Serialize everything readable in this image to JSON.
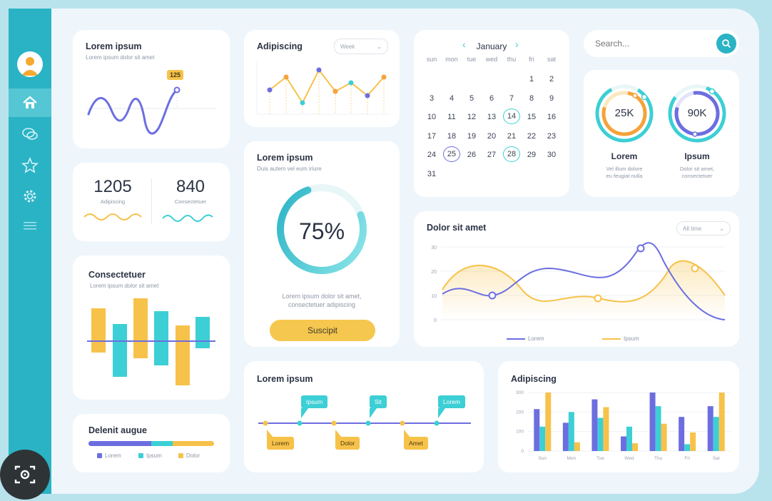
{
  "colors": {
    "teal": "#2ab3c5",
    "turquoise": "#3ccfd5",
    "yellow": "#f6c24a",
    "purple": "#6c6ee0",
    "frame_bg": "#eef6fb",
    "outer_bg": "#b9e3ec"
  },
  "sidebar": {
    "items": [
      {
        "name": "home",
        "icon": "home-icon"
      },
      {
        "name": "messages",
        "icon": "chat-icon"
      },
      {
        "name": "favorites",
        "icon": "star-icon"
      },
      {
        "name": "settings",
        "icon": "gear-icon"
      },
      {
        "name": "menu",
        "icon": "menu-icon"
      }
    ]
  },
  "card_wave": {
    "title": "Lorem ipsum",
    "subtitle": "Lorem ipsum dolor sit amet",
    "badge": "125"
  },
  "stats": [
    {
      "value": "1205",
      "label": "Adipiscing"
    },
    {
      "value": "840",
      "label": "Consectetuer"
    }
  ],
  "card_bars_updown": {
    "title": "Consectetuer",
    "subtitle": "Lorem ipsum dolor sit amet"
  },
  "card_progress_legend": {
    "title": "Delenit augue",
    "legend": [
      "Lorem",
      "Ipsum",
      "Dolor"
    ]
  },
  "card_line_small": {
    "title": "Adipiscing",
    "dropdown": "Week"
  },
  "card_donut": {
    "title": "Lorem ipsum",
    "subtitle": "Duis autem vel eum iriure",
    "percent": "75%",
    "percent_value": 75,
    "text_line1": "Lorem ipsum dolor sit amet,",
    "text_line2": "consectetuer adipiscing",
    "button": "Suscipit"
  },
  "timeline": {
    "title": "Lorem ipsum",
    "top_tags": [
      "Ipsum",
      "Sit",
      "Lorem"
    ],
    "bottom_tags": [
      "Lorem",
      "Dolor",
      "Amet"
    ]
  },
  "calendar": {
    "month": "January",
    "weekdays": [
      "sun",
      "mon",
      "tue",
      "wed",
      "thu",
      "fri",
      "sat"
    ],
    "weeks": [
      [
        "",
        "",
        "",
        "",
        "",
        "1",
        "2"
      ],
      [
        "3",
        "4",
        "5",
        "6",
        "7",
        "8",
        "9"
      ],
      [
        "10",
        "11",
        "12",
        "13",
        "14",
        "15",
        "16"
      ],
      [
        "17",
        "18",
        "19",
        "20",
        "21",
        "22",
        "23"
      ],
      [
        "24",
        "25",
        "26",
        "27",
        "28",
        "29",
        "30"
      ],
      [
        "31",
        "",
        "",
        "",
        "",
        "",
        ""
      ]
    ],
    "highlight_teal": [
      "14",
      "28"
    ],
    "highlight_purple": [
      "25"
    ]
  },
  "search": {
    "placeholder": "Search..."
  },
  "rings": [
    {
      "value": "25K",
      "label": "Lorem",
      "desc1": "Vel illum dolore",
      "desc2": "eu feugiat nulla"
    },
    {
      "value": "90K",
      "label": "Ipsum",
      "desc1": "Dolor sit amet,",
      "desc2": "consectetuer"
    }
  ],
  "chart_data": [
    {
      "type": "line",
      "title": "Dolor sit amet",
      "dropdown": "All time",
      "y_ticks": [
        "30",
        "20",
        "10",
        "0"
      ],
      "legend": [
        "Lorem",
        "Ipsum"
      ]
    },
    {
      "type": "bar",
      "title": "Adipiscing",
      "categories": [
        "Sun",
        "Mon",
        "Tue",
        "Wed",
        "Thu",
        "Fri",
        "Sat"
      ],
      "y_ticks": [
        "300",
        "200",
        "100",
        "0"
      ],
      "series": [
        {
          "color": "#6c6ee0",
          "values": [
            215,
            145,
            265,
            75,
            300,
            175,
            230
          ]
        },
        {
          "color": "#3ccfd5",
          "values": [
            125,
            200,
            170,
            125,
            230,
            35,
            175
          ]
        },
        {
          "color": "#f6c24a",
          "values": [
            300,
            45,
            225,
            40,
            140,
            95,
            300
          ]
        }
      ]
    }
  ]
}
